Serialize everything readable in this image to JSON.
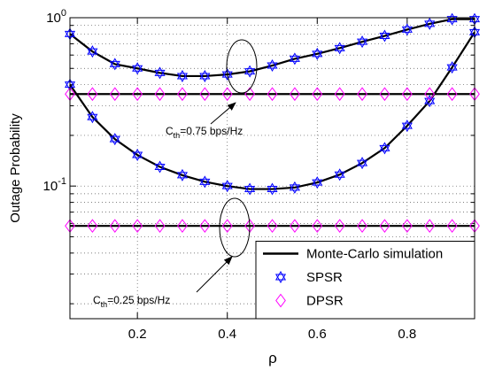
{
  "chart_data": {
    "type": "line",
    "y_scale": "log",
    "grid": true,
    "minor_grid": true,
    "x_label": "ρ",
    "y_label": "Outage Probability",
    "xlim": [
      0.05,
      0.95
    ],
    "xticks": [
      0.2,
      0.4,
      0.6,
      0.8
    ],
    "ylim": [
      0.0163,
      1
    ],
    "yticks": [
      {
        "value": 1,
        "label": "10^0"
      },
      {
        "value": 0.1,
        "label": "10^-1"
      }
    ],
    "x": [
      0.05,
      0.1,
      0.15,
      0.2,
      0.25,
      0.3,
      0.35,
      0.4,
      0.45,
      0.5,
      0.55,
      0.6,
      0.65,
      0.7,
      0.75,
      0.8,
      0.85,
      0.9,
      0.95
    ],
    "legend_position": "lower right",
    "series": [
      {
        "name": "Monte-Carlo simulation",
        "color": "#000000",
        "marker": "line",
        "values": [
          0.8,
          0.63,
          0.53,
          0.5,
          0.47,
          0.45,
          0.45,
          0.46,
          0.48,
          0.52,
          0.57,
          0.61,
          0.66,
          0.72,
          0.78,
          0.85,
          0.92,
          0.98,
          0.98
        ]
      },
      {
        "color": "#000000",
        "marker": "line",
        "values": [
          0.4,
          0.257,
          0.19,
          0.153,
          0.13,
          0.116,
          0.106,
          0.1,
          0.096,
          0.096,
          0.098,
          0.105,
          0.117,
          0.137,
          0.168,
          0.228,
          0.32,
          0.507,
          0.82
        ]
      },
      {
        "color": "#000000",
        "marker": "line",
        "values": [
          0.352,
          0.352,
          0.352,
          0.352,
          0.352,
          0.352,
          0.352,
          0.352,
          0.352,
          0.352,
          0.352,
          0.352,
          0.352,
          0.352,
          0.352,
          0.352,
          0.352,
          0.352,
          0.352
        ]
      },
      {
        "color": "#000000",
        "marker": "line",
        "values": [
          0.058,
          0.058,
          0.058,
          0.058,
          0.058,
          0.058,
          0.058,
          0.058,
          0.058,
          0.058,
          0.058,
          0.058,
          0.058,
          0.058,
          0.058,
          0.058,
          0.058,
          0.058,
          0.058
        ]
      },
      {
        "name": "SPSR",
        "color": "#0000ff",
        "marker": "hexagram",
        "values": [
          0.8,
          0.63,
          0.53,
          0.5,
          0.47,
          0.45,
          0.45,
          0.46,
          0.48,
          0.52,
          0.57,
          0.61,
          0.66,
          0.72,
          0.78,
          0.85,
          0.92,
          0.98,
          0.98
        ]
      },
      {
        "color": "#0000ff",
        "marker": "hexagram",
        "values": [
          0.4,
          0.257,
          0.19,
          0.153,
          0.13,
          0.116,
          0.106,
          0.1,
          0.096,
          0.096,
          0.098,
          0.105,
          0.117,
          0.137,
          0.168,
          0.228,
          0.32,
          0.507,
          0.82
        ]
      },
      {
        "name": "DPSR",
        "color": "#ff00ff",
        "marker": "diamond",
        "values": [
          0.352,
          0.352,
          0.352,
          0.352,
          0.352,
          0.352,
          0.352,
          0.352,
          0.352,
          0.352,
          0.352,
          0.352,
          0.352,
          0.352,
          0.352,
          0.352,
          0.352,
          0.352,
          0.352
        ]
      },
      {
        "color": "#ff00ff",
        "marker": "diamond",
        "values": [
          0.058,
          0.058,
          0.058,
          0.058,
          0.058,
          0.058,
          0.058,
          0.058,
          0.058,
          0.058,
          0.058,
          0.058,
          0.058,
          0.058,
          0.058,
          0.058,
          0.058,
          0.058,
          0.058
        ]
      }
    ],
    "annotations": [
      {
        "text": "C",
        "subscript": "th",
        "suffix": "=0.75 bps/Hz"
      },
      {
        "text": "C",
        "subscript": "th",
        "suffix": "=0.25 bps/Hz"
      }
    ]
  }
}
